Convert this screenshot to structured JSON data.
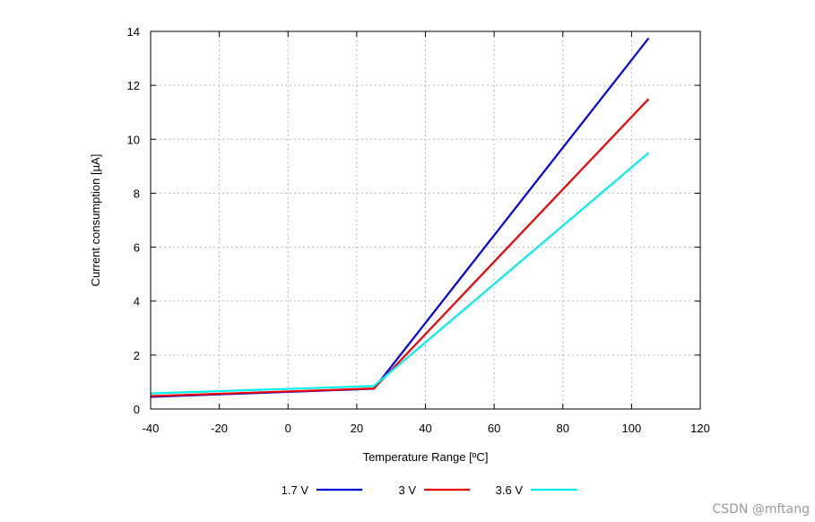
{
  "chart_data": {
    "type": "line",
    "title": "",
    "xlabel": "Temperature Range [ºC]",
    "ylabel": "Current consumption [µA]",
    "xlim": [
      -40,
      120
    ],
    "ylim": [
      0,
      14
    ],
    "xticks": [
      -40,
      -20,
      0,
      20,
      40,
      60,
      80,
      100,
      120
    ],
    "yticks": [
      0,
      2,
      4,
      6,
      8,
      10,
      12,
      14
    ],
    "grid": true,
    "legend_position": "bottom",
    "series": [
      {
        "name": "1.7 V",
        "color": "#0000dd",
        "x": [
          -40,
          25,
          105
        ],
        "y": [
          0.45,
          0.75,
          13.75
        ]
      },
      {
        "name": "3 V",
        "color": "#ee0000",
        "x": [
          -40,
          25,
          105
        ],
        "y": [
          0.48,
          0.76,
          11.5
        ]
      },
      {
        "name": "3.6 V",
        "color": "#00eeee",
        "x": [
          -40,
          25,
          105
        ],
        "y": [
          0.58,
          0.85,
          9.5
        ]
      }
    ]
  },
  "watermark": "CSDN @mftang"
}
